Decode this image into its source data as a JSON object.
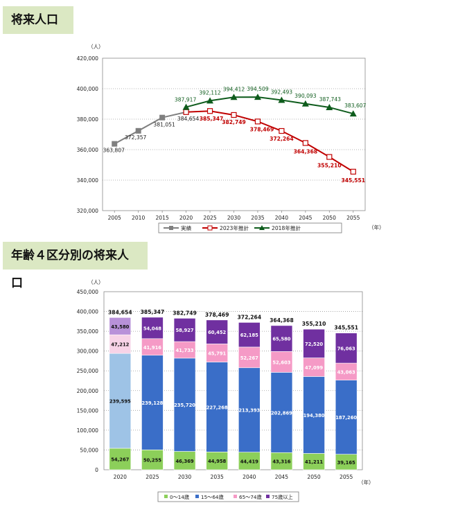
{
  "sections": {
    "line_title": "将来人口",
    "bar_title": "年齢４区分別の将来人口"
  },
  "colors": {
    "actual": "#7f7f7f",
    "proj2023": "#c00000",
    "proj2018": "#0e5c1c",
    "age0_14": "#8ccf5a",
    "age15_64": "#3a6ec8",
    "age15_64_2020": "#9ec3e6",
    "age65_74": "#f59ac6",
    "age65_74_2020": "#f7d3e7",
    "age75": "#7030a0",
    "age75_2020": "#b891d9"
  },
  "chart_data": [
    {
      "type": "line",
      "title": "将来人口",
      "ylabel": "（人）",
      "xlabel": "（年）",
      "ylim": [
        320000,
        420000
      ],
      "yticks": [
        "320,000",
        "340,000",
        "360,000",
        "380,000",
        "400,000",
        "420,000"
      ],
      "ytick_values": [
        320000,
        340000,
        360000,
        380000,
        400000,
        420000
      ],
      "categories": [
        "2005",
        "2010",
        "2015",
        "2020",
        "2025",
        "2030",
        "2035",
        "2040",
        "2045",
        "2050",
        "2055"
      ],
      "legend_position": "bottom",
      "series": [
        {
          "name": "実績",
          "color_key": "actual",
          "marker": "square",
          "x": [
            "2005",
            "2010",
            "2015",
            "2020"
          ],
          "values": [
            363807,
            372357,
            381051,
            384654
          ],
          "labels": [
            "363,807",
            "372,357",
            "381,051",
            "384,654"
          ]
        },
        {
          "name": "2023年推計",
          "color_key": "proj2023",
          "marker": "open-square",
          "x": [
            "2020",
            "2025",
            "2030",
            "2035",
            "2040",
            "2045",
            "2050",
            "2055"
          ],
          "values": [
            384654,
            385347,
            382749,
            378469,
            372264,
            364368,
            355210,
            345551
          ],
          "labels": [
            "",
            "385,347",
            "382,749",
            "378,469",
            "372,264",
            "364,368",
            "355,210",
            "345,551"
          ]
        },
        {
          "name": "2018年推計",
          "color_key": "proj2018",
          "marker": "triangle",
          "x": [
            "2020",
            "2025",
            "2030",
            "2035",
            "2040",
            "2045",
            "2050",
            "2055"
          ],
          "values": [
            387917,
            392112,
            394412,
            394509,
            392493,
            390093,
            387743,
            383607
          ],
          "labels": [
            "387,917",
            "392,112",
            "394,412",
            "394,509",
            "392,493",
            "390,093",
            "387,743",
            "383,607"
          ]
        }
      ]
    },
    {
      "type": "bar",
      "stacked": true,
      "title": "年齢４区分別の将来人口",
      "ylabel": "（人）",
      "xlabel": "（年）",
      "ylim": [
        0,
        450000
      ],
      "yticks": [
        "0",
        "50,000",
        "100,000",
        "150,000",
        "200,000",
        "250,000",
        "300,000",
        "350,000",
        "400,000",
        "450,000"
      ],
      "ytick_values": [
        0,
        50000,
        100000,
        150000,
        200000,
        250000,
        300000,
        350000,
        400000,
        450000
      ],
      "categories": [
        "2020",
        "2025",
        "2030",
        "2035",
        "2040",
        "2045",
        "2050",
        "2055"
      ],
      "totals": [
        384654,
        385347,
        382749,
        378469,
        372264,
        364368,
        355210,
        345551
      ],
      "total_labels": [
        "384,654",
        "385,347",
        "382,749",
        "378,469",
        "372,264",
        "364,368",
        "355,210",
        "345,551"
      ],
      "legend_position": "bottom",
      "series": [
        {
          "name": "0～14歳",
          "color_key": "age0_14",
          "values": [
            54267,
            50255,
            46369,
            44958,
            44419,
            43316,
            41211,
            39165
          ],
          "labels": [
            "54,267",
            "50,255",
            "46,369",
            "44,958",
            "44,419",
            "43,316",
            "41,211",
            "39,165"
          ]
        },
        {
          "name": "15～64歳",
          "color_key": "age15_64",
          "values": [
            239595,
            239128,
            235720,
            227268,
            213393,
            202869,
            194380,
            187260
          ],
          "labels": [
            "239,595",
            "239,128",
            "235,720",
            "227,268",
            "213,393",
            "202,869",
            "194,380",
            "187,260"
          ]
        },
        {
          "name": "65～74歳",
          "color_key": "age65_74",
          "values": [
            47212,
            41916,
            41733,
            45791,
            52267,
            52603,
            47099,
            43063
          ],
          "labels": [
            "47,212",
            "41,916",
            "41,733",
            "45,791",
            "52,267",
            "52,603",
            "47,099",
            "43,063"
          ]
        },
        {
          "name": "75歳以上",
          "color_key": "age75",
          "values": [
            43580,
            54048,
            58927,
            60452,
            62185,
            65580,
            72520,
            76063
          ],
          "labels": [
            "43,580",
            "54,048",
            "58,927",
            "60,452",
            "62,185",
            "65,580",
            "72,520",
            "76,063"
          ]
        }
      ]
    }
  ]
}
